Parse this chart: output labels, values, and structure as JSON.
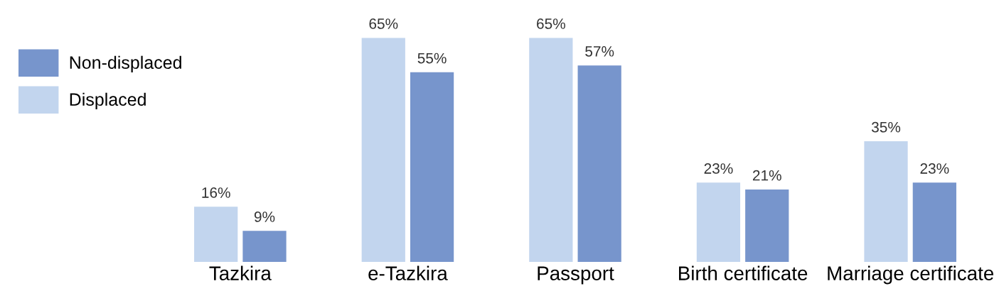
{
  "chart_data": {
    "type": "bar",
    "categories": [
      "Tazkira",
      "e-Tazkira",
      "Passport",
      "Birth certificate",
      "Marriage certificate"
    ],
    "series": [
      {
        "name": "Displaced",
        "color": "#c2d5ee",
        "values": [
          16,
          65,
          65,
          23,
          35
        ],
        "value_labels": [
          "16%",
          "65%",
          "65%",
          "23%",
          "35%"
        ]
      },
      {
        "name": "Non-displaced",
        "color": "#7795cc",
        "values": [
          9,
          55,
          57,
          21,
          23
        ],
        "value_labels": [
          "9%",
          "55%",
          "57%",
          "21%",
          "23%"
        ]
      }
    ],
    "legend": "left",
    "grid": false
  }
}
